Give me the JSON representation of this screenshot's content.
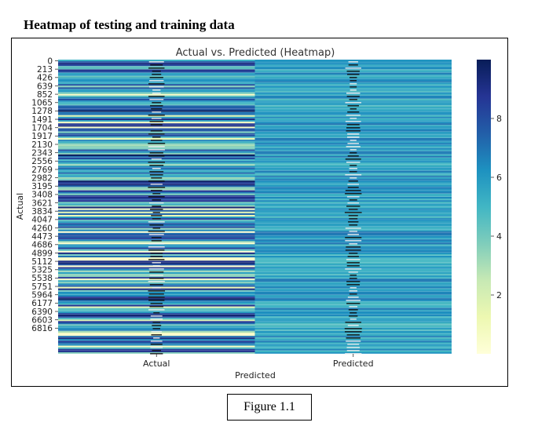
{
  "document": {
    "heading": "Heatmap of testing and training data",
    "caption": "Figure 1.1"
  },
  "chart_data": {
    "type": "heatmap",
    "title": "Actual vs. Predicted (Heatmap)",
    "xlabel": "Predicted",
    "ylabel": "Actual",
    "columns": [
      "Actual",
      "Predicted"
    ],
    "row_tick_labels": [
      "0",
      "213",
      "426",
      "639",
      "852",
      "1065",
      "1278",
      "1491",
      "1704",
      "1917",
      "2130",
      "2343",
      "2556",
      "2769",
      "2982",
      "3195",
      "3408",
      "3621",
      "3834",
      "4047",
      "4260",
      "4473",
      "4686",
      "4899",
      "5112",
      "5325",
      "5538",
      "5751",
      "5964",
      "6177",
      "6390",
      "6603",
      "6816"
    ],
    "colorbar": {
      "colormap": "YlGnBu",
      "vmin": 0,
      "vmax": 10,
      "ticks": [
        2,
        4,
        6,
        8
      ]
    },
    "colors": {
      "cell_border": "#ffffff",
      "annotation_text": "#000000"
    }
  }
}
